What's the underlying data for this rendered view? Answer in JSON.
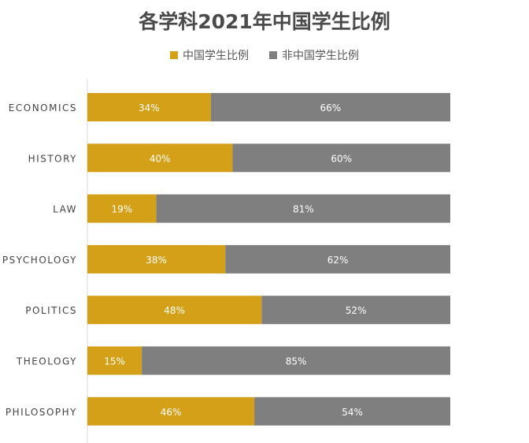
{
  "chart_data": {
    "type": "bar",
    "orientation": "horizontal",
    "stacked": "100%",
    "title": "各学科2021年中国学生比例",
    "legend_position": "top",
    "categories": [
      "ECONOMICS",
      "HISTORY",
      "LAW",
      "PSYCHOLOGY",
      "POLITICS",
      "THEOLOGY",
      "PHILOSOPHY"
    ],
    "series": [
      {
        "name": "中国学生比例",
        "color": "#D4A017",
        "values": [
          34,
          40,
          19,
          38,
          48,
          15,
          46
        ]
      },
      {
        "name": "非中国学生比例",
        "color": "#7F7F7F",
        "values": [
          66,
          60,
          81,
          62,
          52,
          85,
          54
        ]
      }
    ],
    "value_suffix": "%",
    "xlim": [
      0,
      100
    ],
    "grid": false
  }
}
